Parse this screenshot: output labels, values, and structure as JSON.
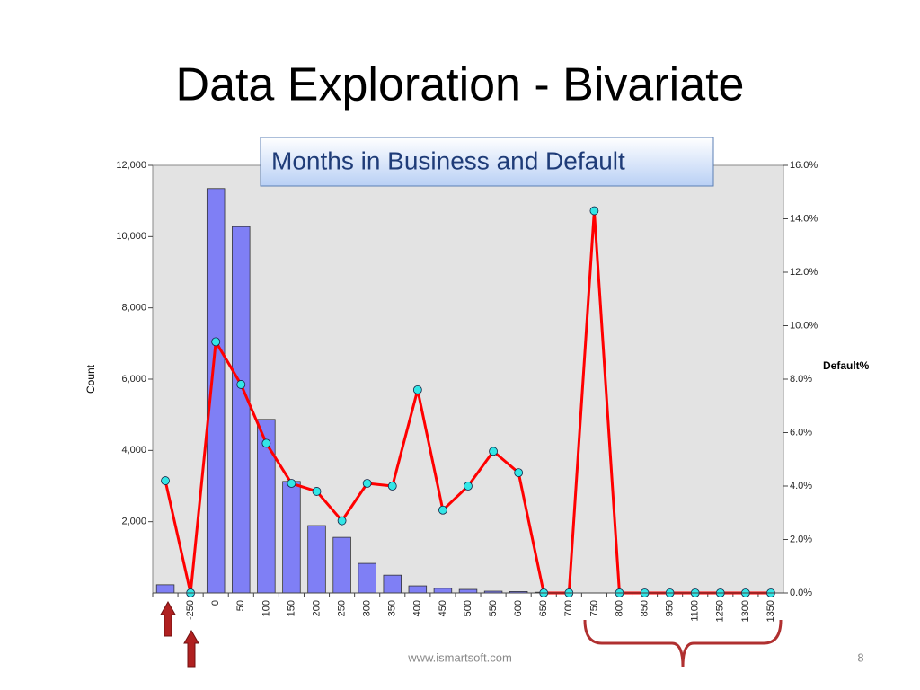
{
  "slide": {
    "title": "Data Exploration - Bivariate",
    "footer": "www.ismartsoft.com",
    "page": "8"
  },
  "chart_data": {
    "type": "bar",
    "title": "Months in Business and Default",
    "categories": [
      null,
      "-250",
      "0",
      "50",
      "100",
      "150",
      "200",
      "250",
      "300",
      "350",
      "400",
      "450",
      "500",
      "550",
      "600",
      "650",
      "700",
      "750",
      "800",
      "850",
      "950",
      "1100",
      "1250",
      "1300",
      "1350"
    ],
    "series": [
      {
        "name": "Count",
        "type": "bar",
        "color": "#7f7ff5",
        "values": [
          230,
          0,
          11350,
          10280,
          4870,
          3130,
          1890,
          1560,
          830,
          500,
          200,
          130,
          100,
          50,
          40,
          20,
          0,
          0,
          0,
          0,
          0,
          0,
          0,
          0,
          0
        ]
      },
      {
        "name": "Default%",
        "type": "line",
        "axis": "y2",
        "color": "#ff0000",
        "marker_color": "#33e6e6",
        "values": [
          4.2,
          0,
          9.4,
          7.8,
          5.6,
          4.1,
          3.8,
          2.7,
          4.1,
          4.0,
          7.6,
          3.1,
          4.0,
          5.3,
          4.5,
          0,
          0,
          14.3,
          0,
          0,
          0,
          0,
          0,
          0,
          0
        ]
      }
    ],
    "ylim": [
      0,
      12000
    ],
    "yticks": [
      {
        "value": 2000,
        "label": "2,000"
      },
      {
        "value": 4000,
        "label": "4,000"
      },
      {
        "value": 6000,
        "label": "6,000"
      },
      {
        "value": 8000,
        "label": "8,000"
      },
      {
        "value": 10000,
        "label": "10,000"
      },
      {
        "value": 12000,
        "label": "12,000"
      }
    ],
    "y2lim": [
      0,
      16
    ],
    "y2ticks": [
      {
        "value": 0,
        "label": "0.0%"
      },
      {
        "value": 2,
        "label": "2.0%"
      },
      {
        "value": 4,
        "label": "4.0%"
      },
      {
        "value": 6,
        "label": "6.0%"
      },
      {
        "value": 8,
        "label": "8.0%"
      },
      {
        "value": 10,
        "label": "10.0%"
      },
      {
        "value": 12,
        "label": "12.0%"
      },
      {
        "value": 14,
        "label": "14.0%"
      },
      {
        "value": 16,
        "label": "16.0%"
      }
    ],
    "grid": false,
    "background": "#e3e3e3"
  }
}
